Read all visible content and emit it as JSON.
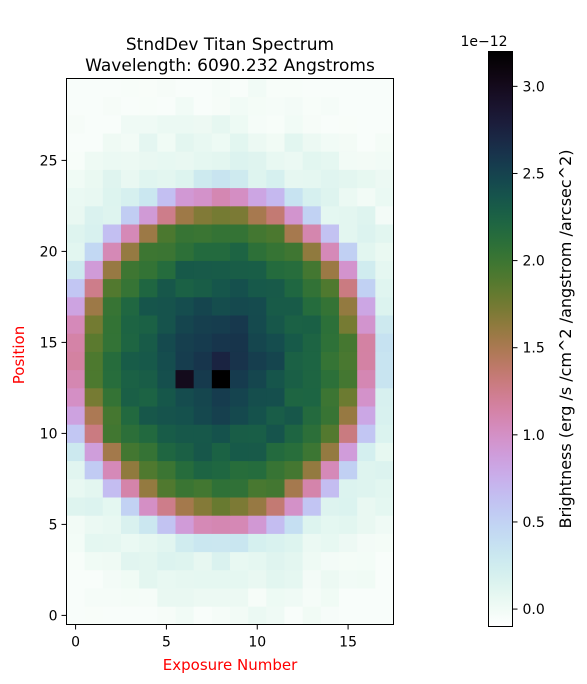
{
  "chart_data": {
    "type": "heatmap",
    "title": "StndDev Titan Spectrum",
    "subtitle": "Wavelength: 6090.232 Angstroms",
    "xlabel": "Exposure Number",
    "ylabel": "Position",
    "xlabel_color": "#ff0000",
    "ylabel_color": "#ff0000",
    "xlim": [
      -0.5,
      17.5
    ],
    "ylim": [
      -0.5,
      29.5
    ],
    "xticks": [
      "0",
      "5",
      "10",
      "15"
    ],
    "yticks": [
      "0",
      "5",
      "10",
      "15",
      "20",
      "25"
    ],
    "n_cols": 18,
    "n_rows": 30,
    "colormap": "cubehelix_r",
    "colorbar": {
      "label": "Brightness (erg /s /cm^2 /angstrom /arcsec^2)",
      "offset_text": "1e−12",
      "range": [
        -0.1,
        3.2
      ],
      "ticks": [
        "0.0",
        "0.5",
        "1.0",
        "1.5",
        "2.0",
        "2.5",
        "3.0"
      ],
      "unit_scale": 1e-12
    },
    "grid": false,
    "feature": "ring-shaped disk centered near exposure 8, position 14; values near 2 on the limb, up to 3.2 at center, near 0 outside"
  }
}
